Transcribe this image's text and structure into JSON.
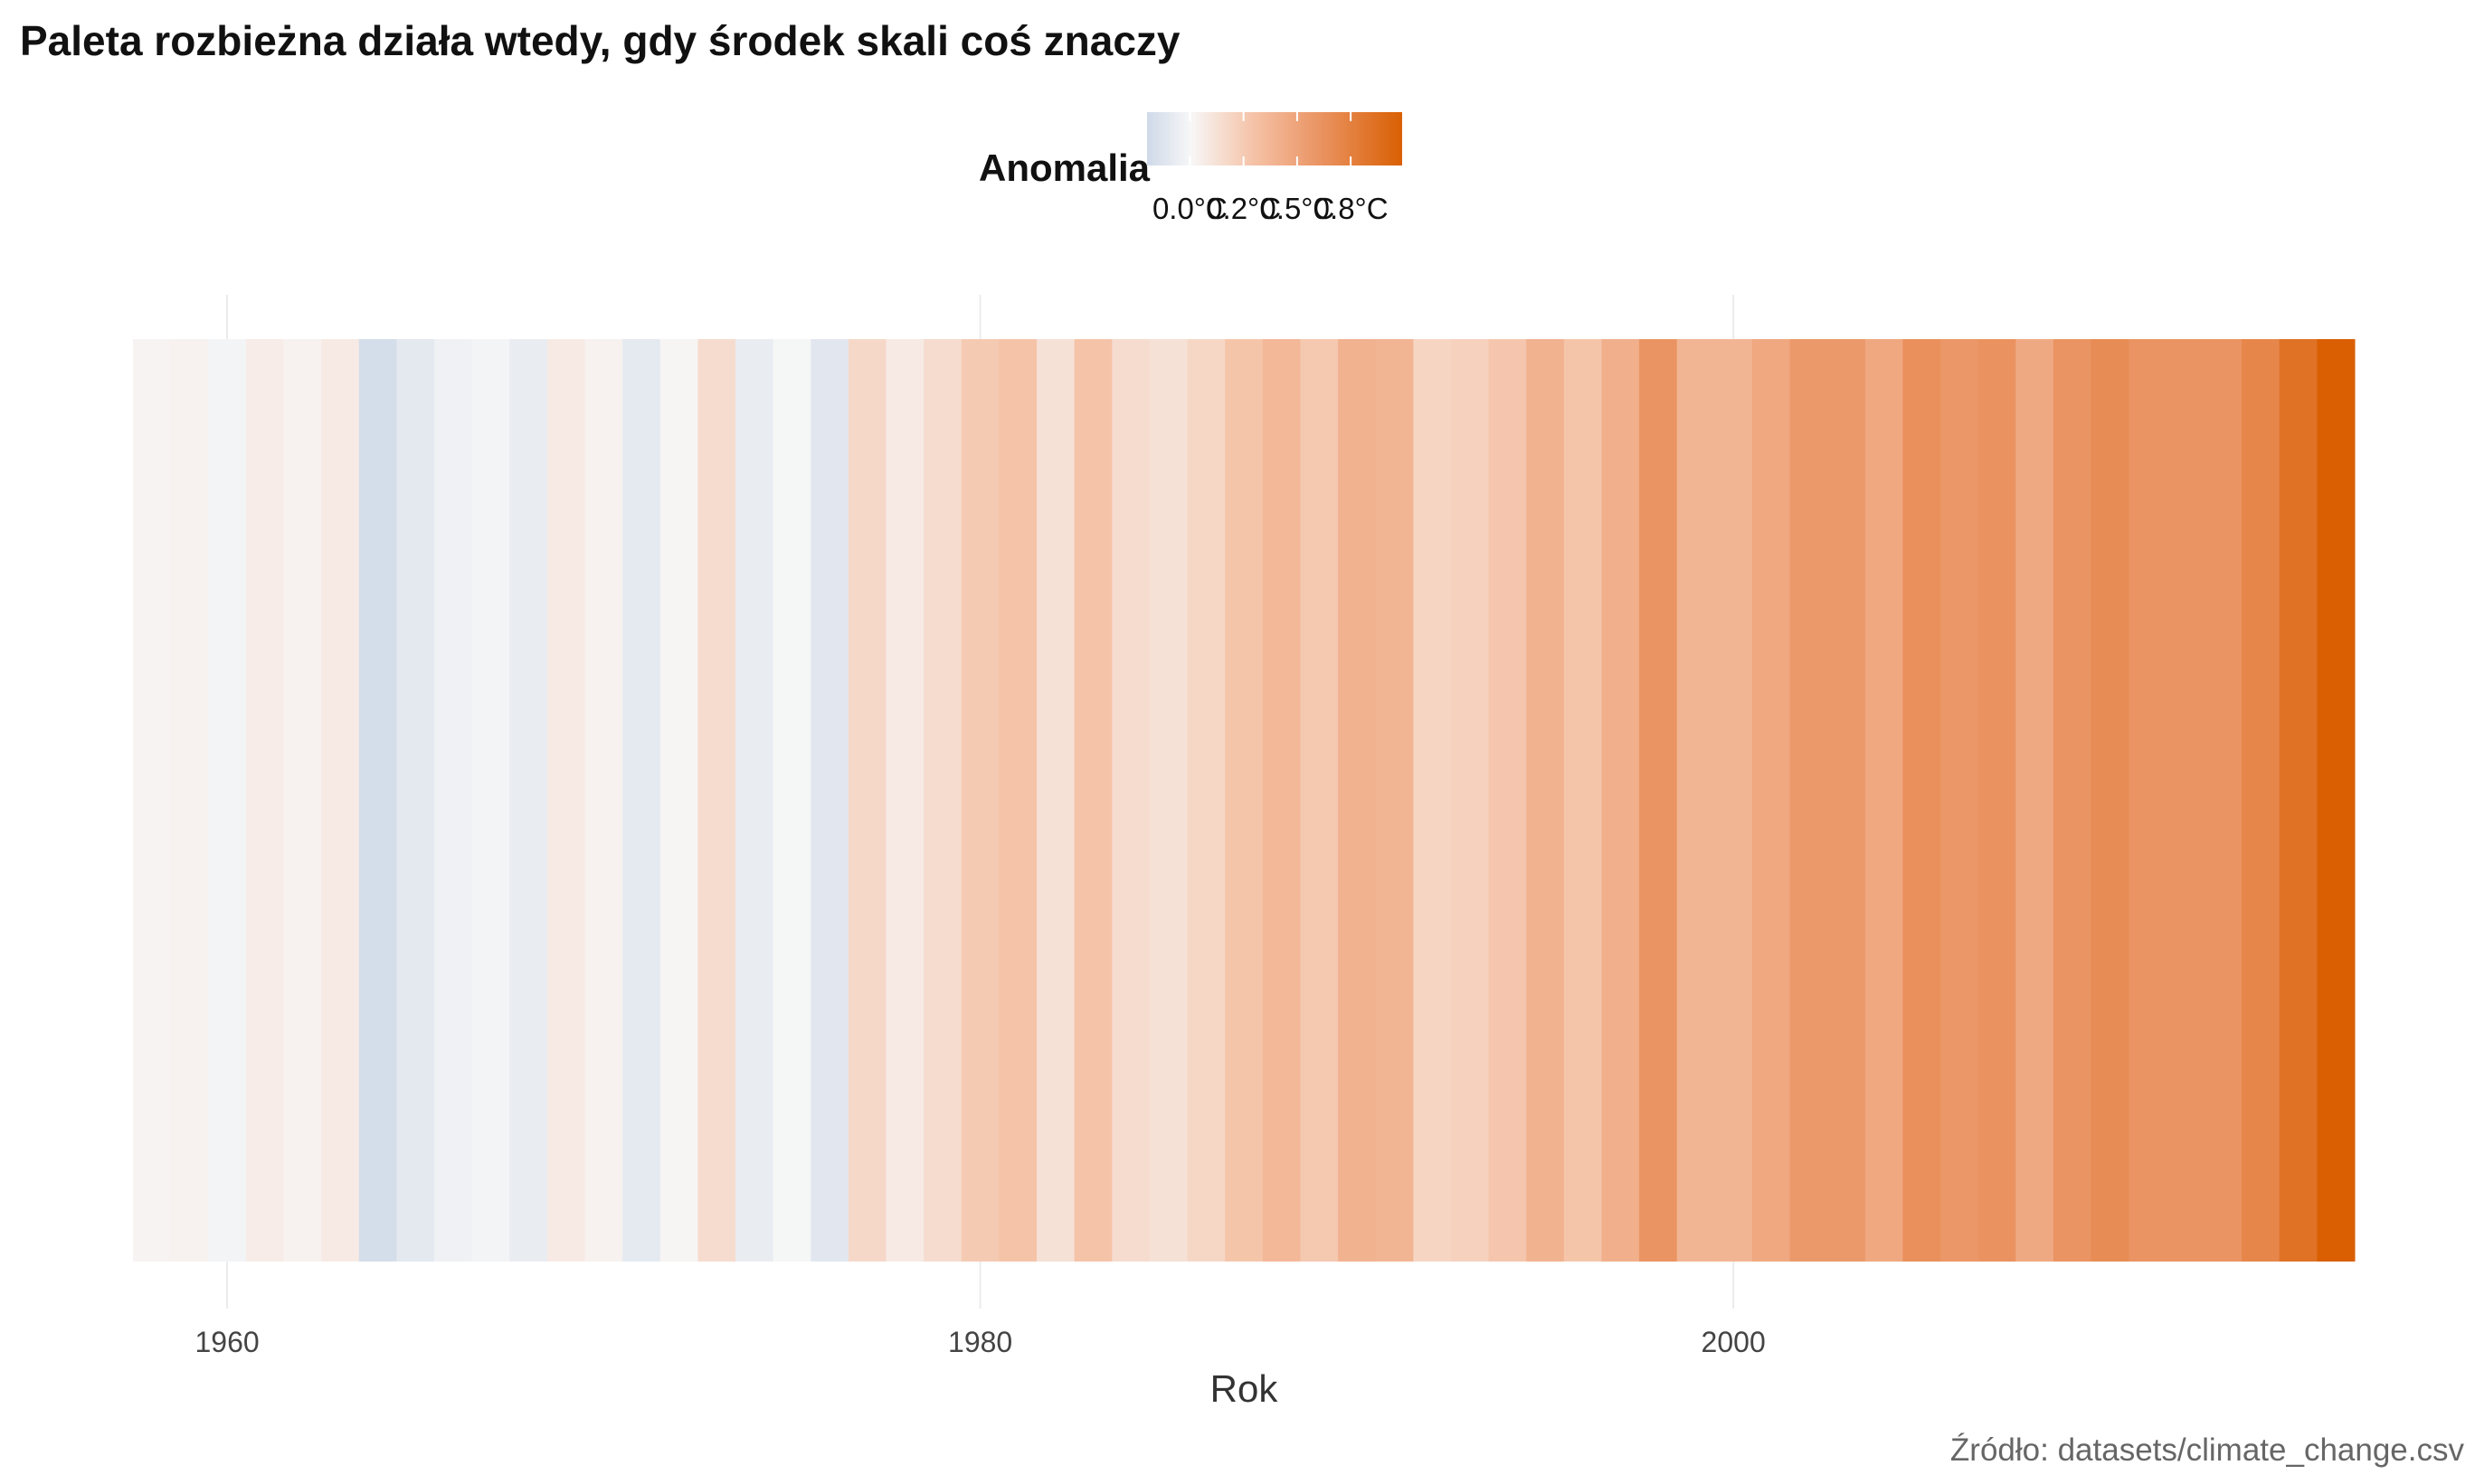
{
  "chart_data": {
    "type": "heatmap",
    "title": "Paleta rozbieżna działa wtedy, gdy środek skali coś znaczy",
    "xlabel": "Rok",
    "ylabel": "",
    "caption": "Źródło: datasets/climate_change.csv",
    "x_ticks": [
      1960,
      1980,
      2000
    ],
    "x_tick_labels": [
      "1960",
      "1980",
      "2000"
    ],
    "xlim": [
      1957.5,
      2016.5
    ],
    "grid": "vertical major lines",
    "legend": {
      "title": "Anomalia",
      "position": "top",
      "range": [
        -0.2,
        0.99
      ],
      "ticks": [
        0,
        0.25,
        0.5,
        0.75
      ],
      "tick_labels": [
        "0.0°C",
        "0.2°C",
        "0.5°C",
        "0.8°C"
      ],
      "colors": {
        "low": "#d0dae9",
        "mid": "#f7f7f7",
        "high": "#d95f02"
      }
    },
    "years": [
      1958,
      1959,
      1960,
      1961,
      1962,
      1963,
      1964,
      1965,
      1966,
      1967,
      1968,
      1969,
      1970,
      1971,
      1972,
      1973,
      1974,
      1975,
      1976,
      1977,
      1978,
      1979,
      1980,
      1981,
      1982,
      1983,
      1984,
      1985,
      1986,
      1987,
      1988,
      1989,
      1990,
      1991,
      1992,
      1993,
      1994,
      1995,
      1996,
      1997,
      1998,
      1999,
      2000,
      2001,
      2002,
      2003,
      2004,
      2005,
      2006,
      2007,
      2008,
      2009,
      2010,
      2011,
      2012,
      2013,
      2014,
      2015,
      2016
    ],
    "anomaly": [
      0.02,
      0.03,
      -0.02,
      0.06,
      0.03,
      0.07,
      -0.18,
      -0.1,
      -0.04,
      -0.02,
      -0.07,
      0.07,
      0.03,
      -0.09,
      0.01,
      0.15,
      -0.07,
      -0.01,
      -0.11,
      0.17,
      0.07,
      0.15,
      0.25,
      0.29,
      0.12,
      0.29,
      0.15,
      0.12,
      0.18,
      0.28,
      0.36,
      0.26,
      0.4,
      0.38,
      0.19,
      0.21,
      0.27,
      0.4,
      0.28,
      0.42,
      0.6,
      0.38,
      0.38,
      0.47,
      0.57,
      0.57,
      0.47,
      0.63,
      0.58,
      0.61,
      0.46,
      0.6,
      0.66,
      0.6,
      0.6,
      0.6,
      0.7,
      0.85,
      0.99
    ]
  }
}
